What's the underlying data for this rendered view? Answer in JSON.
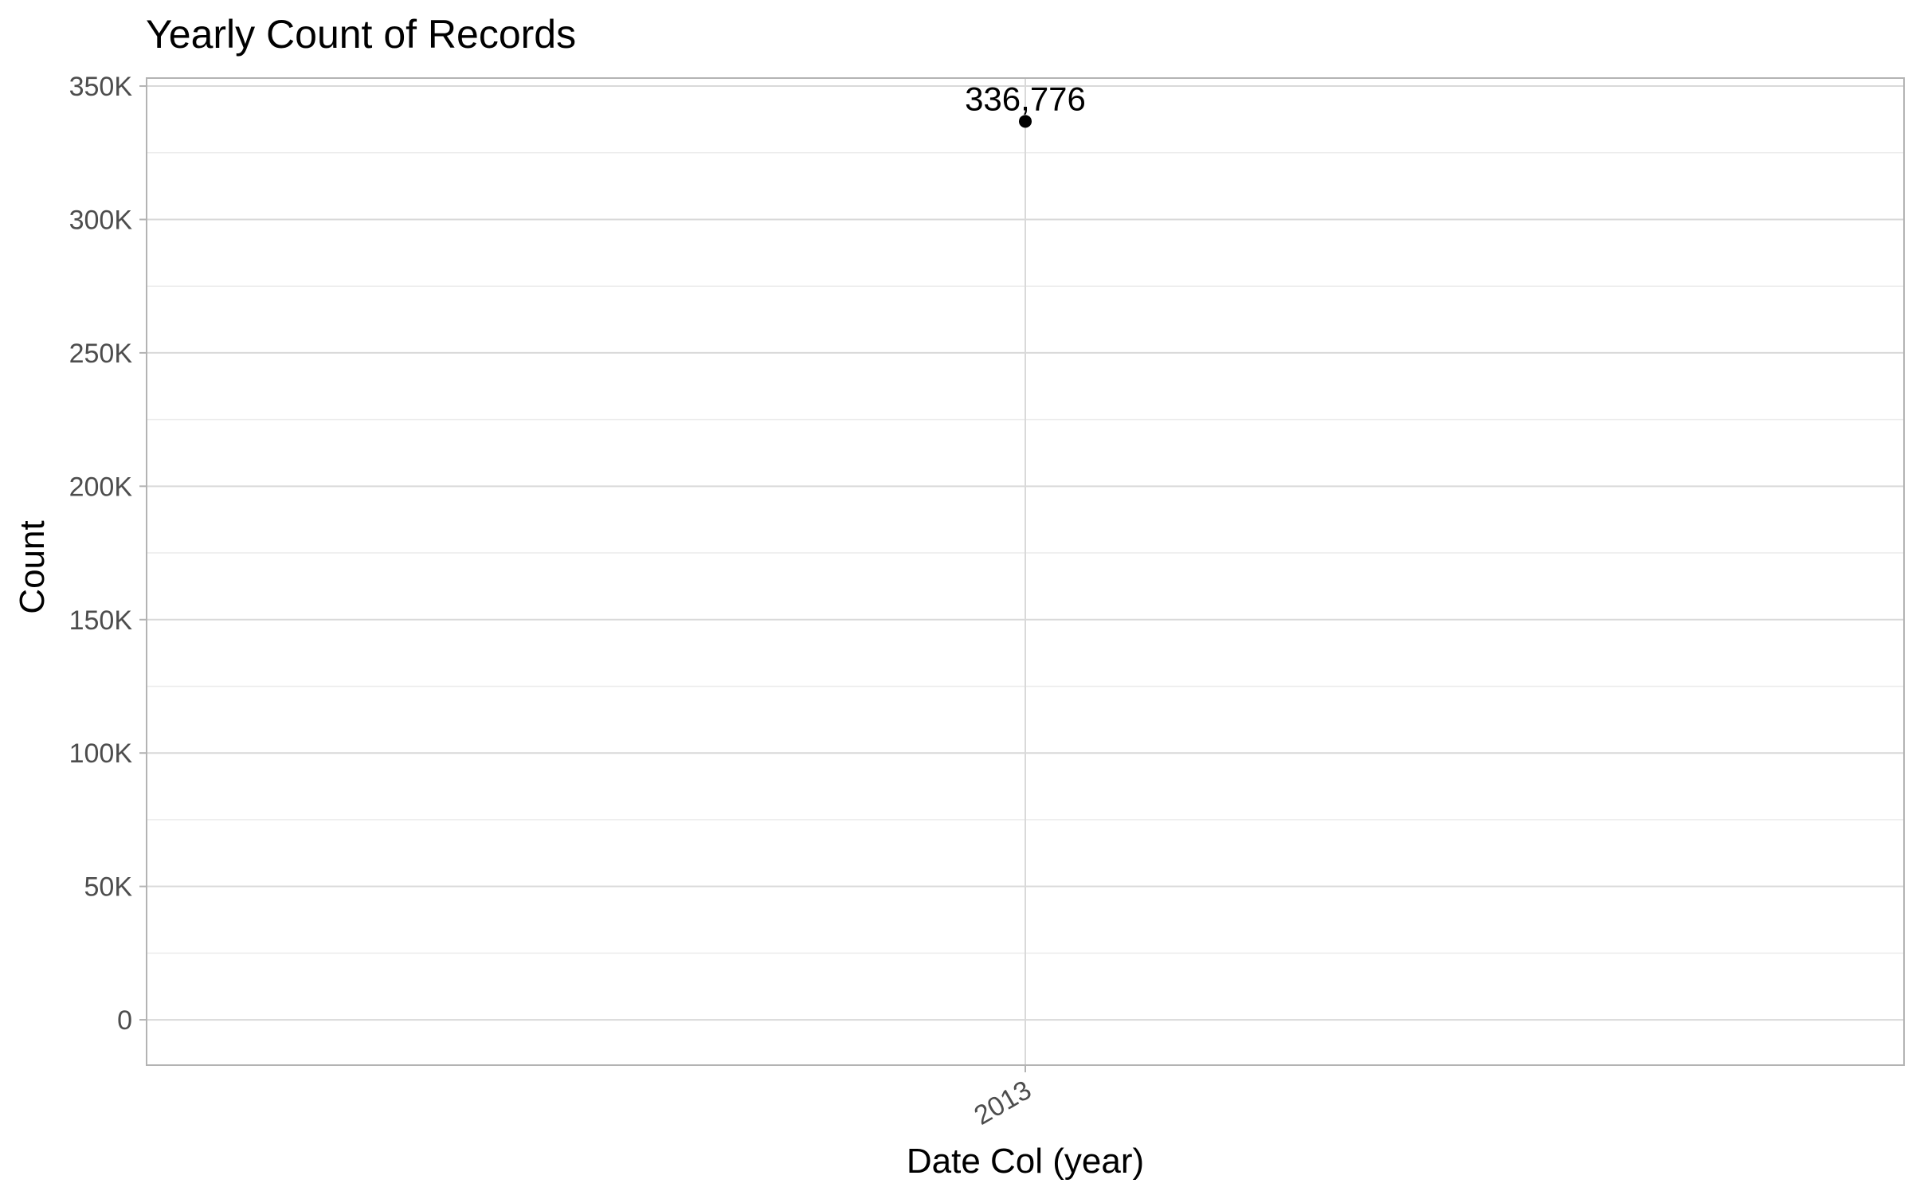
{
  "chart_data": {
    "type": "scatter",
    "title": "Yearly Count of Records",
    "xlabel": "Date Col (year)",
    "ylabel": "Count",
    "x": [
      "2013"
    ],
    "y": [
      336776
    ],
    "data_labels": [
      "336,776"
    ],
    "ylim": [
      -17000,
      353000
    ],
    "y_ticks": [
      0,
      50000,
      100000,
      150000,
      200000,
      250000,
      300000,
      350000
    ],
    "y_tick_labels": [
      "0",
      "50K",
      "100K",
      "150K",
      "200K",
      "250K",
      "300K",
      "350K"
    ],
    "x_tick_labels": [
      "2013"
    ],
    "grid": true,
    "legend": "none",
    "colors": {
      "point": "#000000",
      "grid_major": "#d9d9d9",
      "grid_minor": "#ececec",
      "border": "#b3b3b3",
      "tick_text": "#4d4d4d"
    }
  }
}
